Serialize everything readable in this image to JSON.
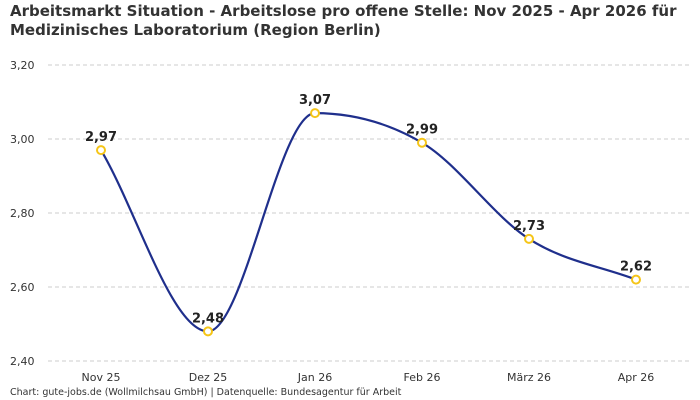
{
  "title": "Arbeitsmarkt Situation - Arbeitslose pro offene Stelle: Nov 2025 - Apr 2026 für Medizinisches Laboratorium (Region Berlin)",
  "source": "Chart: gute-jobs.de (Wollmilchsau GmbH) | Datenquelle: Bundesagentur für Arbeit",
  "colors": {
    "line": "#1f2f8c",
    "marker": "#f5c518",
    "grid": "#cccccc"
  },
  "chart_data": {
    "type": "line",
    "title": "Arbeitsmarkt Situation - Arbeitslose pro offene Stelle: Nov 2025 - Apr 2026 für Medizinisches Laboratorium (Region Berlin)",
    "xlabel": "",
    "ylabel": "",
    "categories": [
      "Nov 25",
      "Dez 25",
      "Jan 26",
      "Feb 26",
      "März 26",
      "Apr 26"
    ],
    "values": [
      2.97,
      2.48,
      3.07,
      2.99,
      2.73,
      2.62
    ],
    "data_labels": [
      "2,97",
      "2,48",
      "3,07",
      "2,99",
      "2,73",
      "2,62"
    ],
    "ylim": [
      2.4,
      3.2
    ],
    "yticks": [
      2.4,
      2.6,
      2.8,
      3.0,
      3.2
    ],
    "ytick_labels": [
      "2,40",
      "2,60",
      "2,80",
      "3,00",
      "3,20"
    ],
    "grid": true,
    "smooth": true
  }
}
